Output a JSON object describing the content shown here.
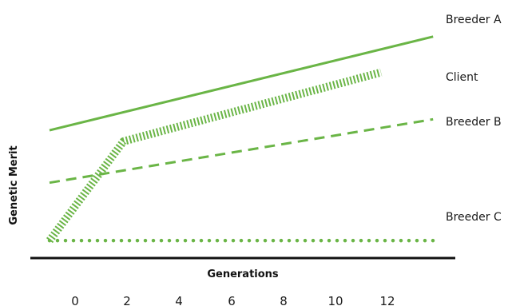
{
  "chart_data": {
    "type": "line",
    "title": "",
    "xlabel": "Generations",
    "ylabel": "Genetic Merit",
    "x_ticks": [
      0,
      2,
      4,
      6,
      8,
      10,
      12
    ],
    "xlim": [
      -1,
      14
    ],
    "ylim": [
      0,
      10
    ],
    "grid": false,
    "legend": "inline-right",
    "color": "#6ab546",
    "series": [
      {
        "name": "Breeder A",
        "style": "solid",
        "x": [
          0,
          14
        ],
        "y": [
          6.2,
          9.6
        ]
      },
      {
        "name": "Client",
        "style": "hatched",
        "x": [
          0,
          2.7,
          12.1
        ],
        "y": [
          2.2,
          5.8,
          8.3
        ]
      },
      {
        "name": "Breeder B",
        "style": "dashed",
        "x": [
          0,
          14
        ],
        "y": [
          4.3,
          6.6
        ]
      },
      {
        "name": "Breeder C",
        "style": "dotted",
        "x": [
          0,
          14
        ],
        "y": [
          2.2,
          2.2
        ]
      }
    ]
  }
}
